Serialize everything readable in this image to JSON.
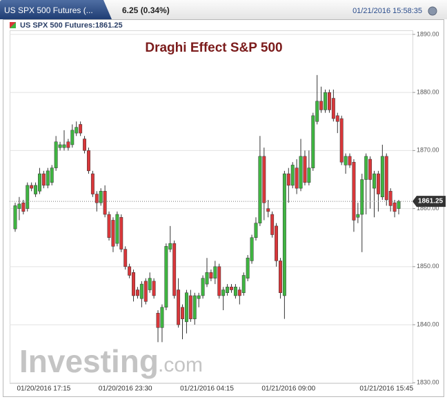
{
  "header": {
    "tab": "US SPX 500 Futures (...",
    "change": "6.25 (0.34%)",
    "timestamp": "01/21/2016 15:58:35"
  },
  "chart_data": {
    "type": "candlestick",
    "title": "Draghi Effect S&P 500",
    "legend": "US SPX 500 Futures:1861.25",
    "watermark": {
      "main": "Investing",
      "suffix": ".com"
    },
    "up_color": "#3fb541",
    "down_color": "#d9373a",
    "current_price": {
      "value": 1861.25,
      "label": "1861.25"
    },
    "categories": [
      null,
      null,
      null,
      null,
      null,
      null,
      null,
      "01/20/2016 17:15",
      null,
      null,
      null,
      null,
      null,
      null,
      null,
      null,
      null,
      null,
      null,
      null,
      null,
      null,
      null,
      null,
      null,
      null,
      null,
      "01/20/2016 23:30",
      null,
      null,
      null,
      null,
      null,
      null,
      null,
      null,
      null,
      null,
      null,
      null,
      null,
      null,
      null,
      null,
      null,
      null,
      null,
      "01/21/2016 04:15",
      null,
      null,
      null,
      null,
      null,
      null,
      null,
      null,
      null,
      null,
      null,
      null,
      null,
      null,
      null,
      null,
      null,
      null,
      null,
      "01/21/2016 09:00",
      null,
      null,
      null,
      null,
      null,
      null,
      null,
      null,
      null,
      null,
      null,
      null,
      null,
      null,
      null,
      null,
      null,
      null,
      null,
      null,
      null,
      null,
      null,
      "01/21/2016 15:45",
      null,
      null,
      null
    ],
    "open": [
      1856.5,
      1860,
      1861,
      1860,
      1864,
      1862.5,
      1863,
      1866,
      1864,
      1864.5,
      1867,
      1870.5,
      1870.5,
      1871.5,
      1871,
      1873,
      1874.5,
      1872,
      1870,
      1866,
      1862.5,
      1861,
      1863,
      1859,
      1858,
      1854,
      1858.5,
      1853,
      1850,
      1849,
      1846,
      1844.5,
      1847.5,
      1846,
      1847.5,
      1842,
      1839.5,
      1843,
      1853,
      1854,
      1846,
      1843,
      1840.5,
      1845,
      1841,
      1844.5,
      1845,
      1847,
      1849,
      1848,
      1850,
      1845,
      1845.5,
      1846.5,
      1845,
      1846,
      1845.5,
      1848,
      1851,
      1855,
      1857.5,
      1869,
      1860,
      1859,
      1857,
      1851,
      1845,
      1866,
      1864,
      1867,
      1863.5,
      1869,
      1864.5,
      1867,
      1875,
      1878.5,
      1877,
      1880,
      1879,
      1876,
      1875.5,
      1867.5,
      1869,
      1868,
      1858.5,
      1859,
      1865,
      1868.5,
      1863.5,
      1866,
      1862,
      1869,
      1863,
      1861,
      1860
    ],
    "high": [
      1861,
      1862,
      1861.5,
      1864.5,
      1864.5,
      1864.5,
      1867,
      1866.5,
      1867,
      1867.5,
      1872.5,
      1871.5,
      1873.5,
      1872,
      1874.5,
      1875,
      1875,
      1872.5,
      1870.5,
      1866.5,
      1863,
      1863.5,
      1864,
      1859.5,
      1858.5,
      1859.5,
      1859,
      1853.5,
      1850.5,
      1849.5,
      1846.5,
      1847.5,
      1848,
      1849,
      1848,
      1842.5,
      1843.5,
      1854,
      1857,
      1854.5,
      1848,
      1843.5,
      1846,
      1846,
      1845.5,
      1845.5,
      1848.5,
      1851.5,
      1849.5,
      1851,
      1850.5,
      1846.5,
      1847,
      1847,
      1847,
      1846.5,
      1849,
      1852,
      1855.5,
      1858.5,
      1872.5,
      1870.5,
      1861.5,
      1859.5,
      1857.5,
      1851.5,
      1866.5,
      1867,
      1868,
      1868.5,
      1872,
      1870,
      1870,
      1876.5,
      1883,
      1881,
      1880.5,
      1880.5,
      1880.5,
      1876.5,
      1876,
      1869.5,
      1869.5,
      1868.5,
      1861,
      1866,
      1869.5,
      1869,
      1866.5,
      1866.5,
      1871,
      1869.5,
      1863.5,
      1861.5,
      1861.5
    ],
    "low": [
      1856,
      1858,
      1859,
      1859.5,
      1863,
      1862,
      1862.5,
      1863.5,
      1863.5,
      1864,
      1866.5,
      1870,
      1870,
      1870,
      1870.5,
      1872.5,
      1872.5,
      1869.5,
      1866,
      1862,
      1859.5,
      1860.5,
      1858.5,
      1854.5,
      1852.5,
      1853.5,
      1852.5,
      1849.5,
      1848,
      1844,
      1844.5,
      1843,
      1843.5,
      1845.5,
      1844.5,
      1837,
      1837,
      1842.5,
      1852.5,
      1844.5,
      1839.5,
      1837.5,
      1838.5,
      1840.5,
      1840,
      1843,
      1844.5,
      1846.5,
      1847.5,
      1847,
      1844.5,
      1842.5,
      1845,
      1845.5,
      1844.5,
      1843.5,
      1845,
      1847.5,
      1850.5,
      1854.5,
      1857,
      1858,
      1858.5,
      1855,
      1850,
      1844.5,
      1841,
      1861,
      1863.5,
      1862.5,
      1863,
      1864,
      1864,
      1866.5,
      1874.5,
      1876.5,
      1876.5,
      1876.5,
      1875,
      1873,
      1867.5,
      1866,
      1867,
      1856,
      1857.5,
      1852.5,
      1859,
      1860,
      1858.5,
      1859.5,
      1861.5,
      1860.5,
      1859.5,
      1858.5,
      1859
    ],
    "close": [
      1860.5,
      1860.8,
      1859.5,
      1864,
      1863.5,
      1864,
      1866,
      1864,
      1866.5,
      1867,
      1871.5,
      1871,
      1871,
      1870.5,
      1873.5,
      1874,
      1873,
      1870,
      1866.5,
      1862.5,
      1861,
      1863,
      1859,
      1855,
      1853.5,
      1859,
      1853,
      1850,
      1848.5,
      1845,
      1845,
      1847,
      1844,
      1848,
      1845,
      1839.5,
      1843,
      1853.5,
      1854,
      1845,
      1840,
      1841,
      1845.5,
      1841,
      1845,
      1845,
      1848,
      1849,
      1848,
      1850,
      1845,
      1846,
      1846.5,
      1846,
      1846.5,
      1845,
      1848.5,
      1851.5,
      1855,
      1857.5,
      1869,
      1861,
      1859.5,
      1855.5,
      1851,
      1845.5,
      1866,
      1864,
      1867.5,
      1863.5,
      1869,
      1864.5,
      1867,
      1876,
      1878.5,
      1877,
      1880,
      1877,
      1875.5,
      1875,
      1868,
      1869,
      1867.5,
      1858,
      1859,
      1865,
      1869,
      1865,
      1866,
      1862.5,
      1869,
      1861.5,
      1860.5,
      1859.5,
      1861.25
    ],
    "ylim": [
      1829.8,
      1890.7
    ],
    "yticks": [
      {
        "value": 1830,
        "label": "1830.00"
      },
      {
        "value": 1840,
        "label": "1840.00"
      },
      {
        "value": 1850,
        "label": "1850.00"
      },
      {
        "value": 1860,
        "label": "1860.00"
      },
      {
        "value": 1870,
        "label": "1870.00"
      },
      {
        "value": 1880,
        "label": "1880.00"
      },
      {
        "value": 1890,
        "label": "1890.00"
      }
    ],
    "grid": true
  }
}
